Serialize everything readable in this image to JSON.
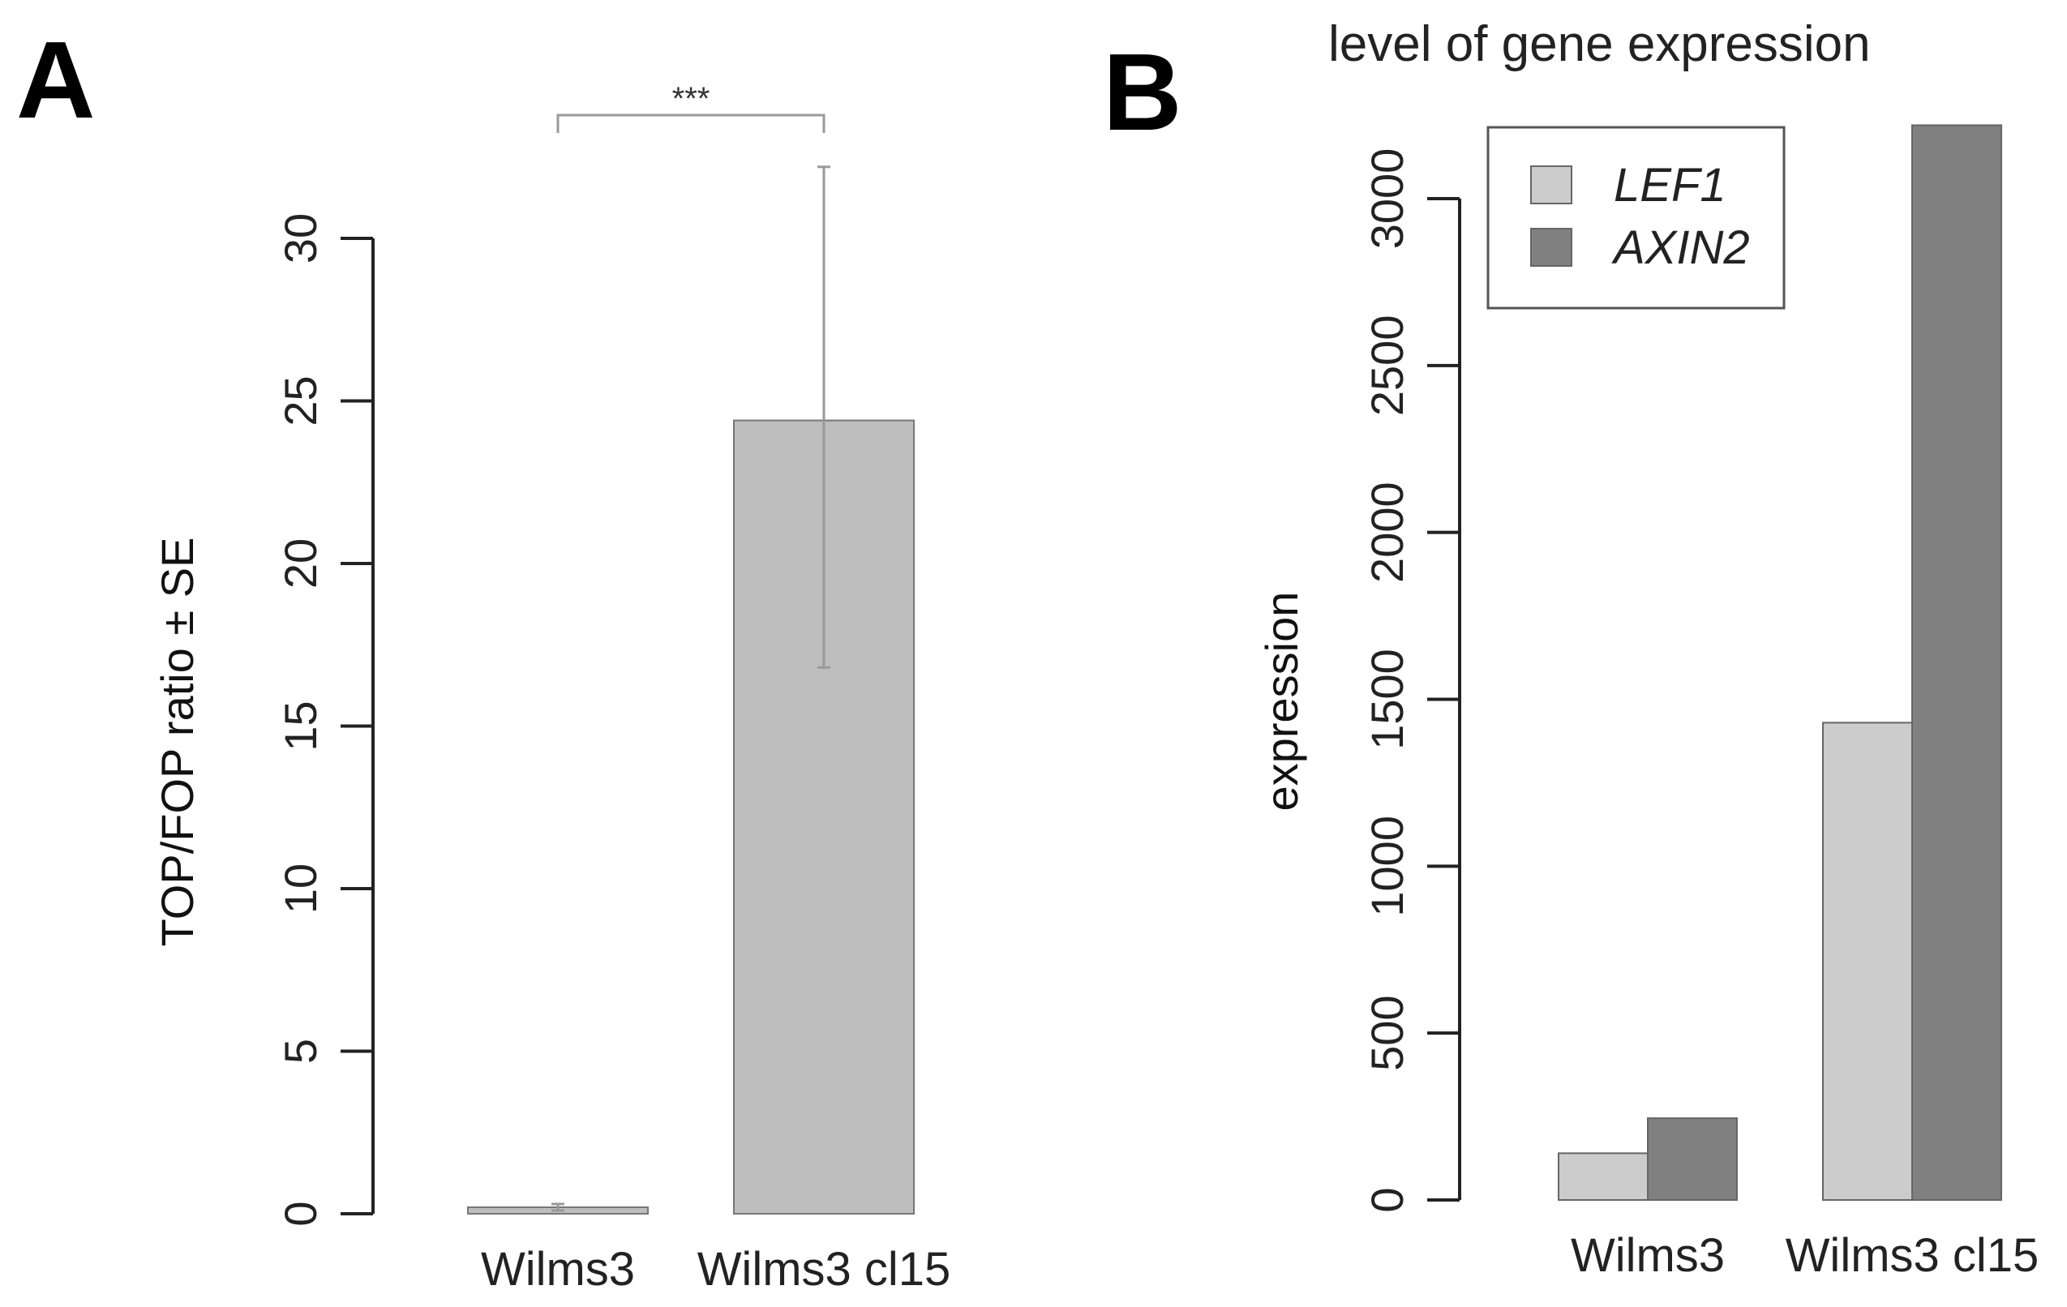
{
  "panel_a_label": "A",
  "panel_b_label": "B",
  "chart_data": [
    {
      "type": "bar",
      "panel": "A",
      "title": "",
      "xlabel": "",
      "ylabel": "TOP/FOP ratio ± SE",
      "categories": [
        "Wilms3",
        "Wilms3 cl15"
      ],
      "values": [
        0.2,
        24.4
      ],
      "error_low": [
        0.1,
        16.8
      ],
      "error_high": [
        0.3,
        32.2
      ],
      "ylim": [
        0,
        30
      ],
      "yticks": [
        0,
        5,
        10,
        15,
        20,
        25,
        30
      ],
      "bar_color": "#bebebe",
      "significance": {
        "label": "***",
        "between": [
          "Wilms3",
          "Wilms3 cl15"
        ]
      }
    },
    {
      "type": "bar",
      "panel": "B",
      "title": "level of gene expression",
      "xlabel": "",
      "ylabel": "expression",
      "categories": [
        "Wilms3",
        "Wilms3 cl15"
      ],
      "series": [
        {
          "name": "LEF1",
          "values": [
            140,
            1430
          ],
          "color": "#cccccc"
        },
        {
          "name": "AXIN2",
          "values": [
            245,
            3220
          ],
          "color": "#808080"
        }
      ],
      "ylim": [
        0,
        3000
      ],
      "yticks": [
        0,
        500,
        1000,
        1500,
        2000,
        2500,
        3000
      ],
      "legend_position": "top-left"
    }
  ]
}
